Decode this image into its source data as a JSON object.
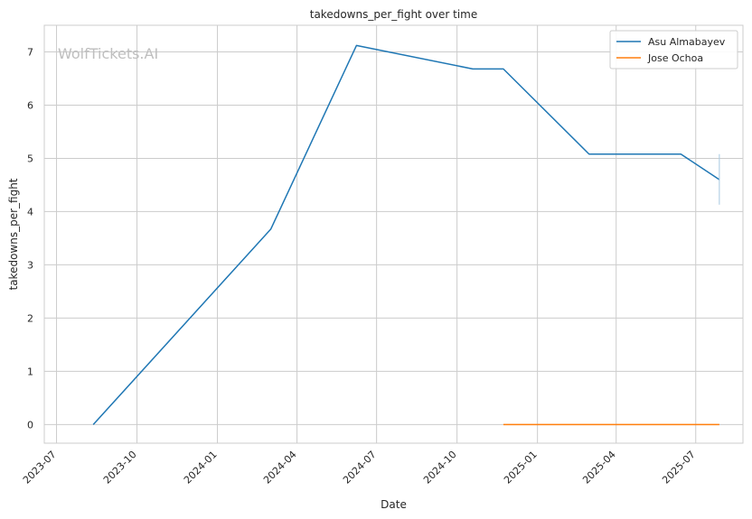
{
  "chart_data": {
    "type": "line",
    "title": "takedowns_per_fight over time",
    "xlabel": "Date",
    "ylabel": "takedowns_per_fight",
    "watermark": "WolfTickets.AI",
    "grid": true,
    "legend_position": "top-right",
    "x_ticks": [
      "2023-07",
      "2023-10",
      "2024-01",
      "2024-04",
      "2024-07",
      "2024-10",
      "2025-01",
      "2025-04",
      "2025-07"
    ],
    "y_ticks": [
      0,
      1,
      2,
      3,
      4,
      5,
      6,
      7
    ],
    "xlim": [
      "2023-06-17",
      "2025-08-24"
    ],
    "ylim": [
      -0.35,
      7.5
    ],
    "series": [
      {
        "name": "Asu Almabayev",
        "color": "#1f77b4",
        "x": [
          "2023-08-12",
          "2024-03-02",
          "2024-06-08",
          "2024-10-19",
          "2024-11-23",
          "2025-03-01",
          "2025-06-14",
          "2025-07-28"
        ],
        "y": [
          0,
          3.67,
          7.12,
          6.68,
          6.68,
          5.08,
          5.08,
          4.6
        ]
      },
      {
        "name": "Jose Ochoa",
        "color": "#ff7f0e",
        "x": [
          "2024-11-23",
          "2025-07-28"
        ],
        "y": [
          0,
          0
        ]
      }
    ],
    "error_bar": {
      "color": "#a5c8e1",
      "x": "2025-07-28",
      "low": 4.13,
      "high": 5.08
    }
  }
}
